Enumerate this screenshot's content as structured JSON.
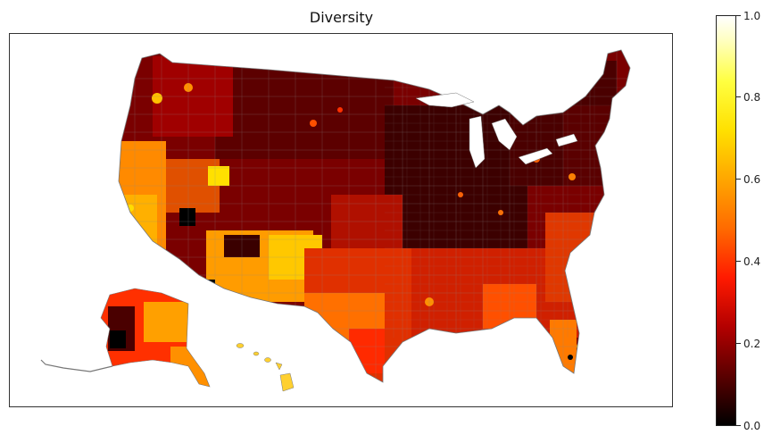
{
  "title": "Diversity",
  "colorbar": {
    "ticks": [
      "0.0",
      "0.2",
      "0.4",
      "0.6",
      "0.8",
      "1.0"
    ],
    "colormap": "hot",
    "range": [
      0.0,
      1.0
    ]
  },
  "colors": {
    "low": "#000000",
    "mid_low": "#8b0000",
    "mid": "#ff2000",
    "mid_high": "#ff9000",
    "high": "#ffe000",
    "max": "#ffffff",
    "county_border": "#777777"
  }
}
